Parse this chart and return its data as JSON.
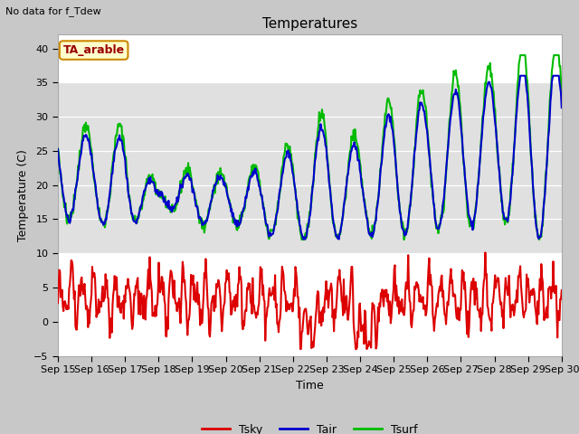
{
  "title": "Temperatures",
  "xlabel": "Time",
  "ylabel": "Temperature (C)",
  "note": "No data for f_Tdew",
  "label_box": "TA_arable",
  "ylim": [
    -5,
    42
  ],
  "yticks": [
    -5,
    0,
    5,
    10,
    15,
    20,
    25,
    30,
    35,
    40
  ],
  "xtick_labels": [
    "Sep 15",
    "Sep 16",
    "Sep 17",
    "Sep 18",
    "Sep 19",
    "Sep 20",
    "Sep 21",
    "Sep 22",
    "Sep 23",
    "Sep 24",
    "Sep 25",
    "Sep 26",
    "Sep 27",
    "Sep 28",
    "Sep 29",
    "Sep 30"
  ],
  "fig_bg": "#c8c8c8",
  "ax_bg": "#ffffff",
  "band_color": "#e0e0e0",
  "band_lo": 10,
  "band_hi": 35,
  "tsky_color": "#dd0000",
  "tair_color": "#0000cc",
  "tsurf_color": "#00bb00",
  "tsky_lw": 1.5,
  "tair_lw": 1.5,
  "tsurf_lw": 1.5,
  "n_points": 720,
  "days": 15
}
